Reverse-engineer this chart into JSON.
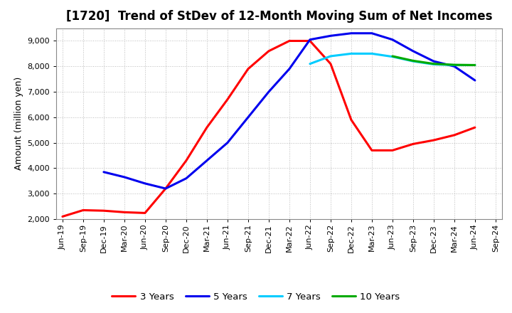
{
  "title": "[1720]  Trend of StDev of 12-Month Moving Sum of Net Incomes",
  "ylabel": "Amount (million yen)",
  "x_labels": [
    "Jun-19",
    "Sep-19",
    "Dec-19",
    "Mar-20",
    "Jun-20",
    "Sep-20",
    "Dec-20",
    "Mar-21",
    "Jun-21",
    "Sep-21",
    "Dec-21",
    "Mar-22",
    "Jun-22",
    "Sep-22",
    "Dec-22",
    "Mar-23",
    "Jun-23",
    "Sep-23",
    "Dec-23",
    "Mar-24",
    "Jun-24",
    "Sep-24"
  ],
  "series_order": [
    "3 Years",
    "5 Years",
    "7 Years",
    "10 Years"
  ],
  "series": {
    "3 Years": {
      "color": "#FF0000",
      "data": [
        2100,
        2350,
        2330,
        2270,
        2240,
        3200,
        4300,
        5600,
        6700,
        7900,
        8600,
        9000,
        9000,
        8100,
        5900,
        4700,
        4700,
        4950,
        5100,
        5300,
        5600,
        null
      ]
    },
    "5 Years": {
      "color": "#0000EE",
      "data": [
        null,
        null,
        3850,
        3650,
        3400,
        3200,
        3600,
        4300,
        5000,
        6000,
        7000,
        7900,
        9050,
        9200,
        9300,
        9300,
        9050,
        8600,
        8200,
        8000,
        7450,
        null
      ]
    },
    "7 Years": {
      "color": "#00CCFF",
      "data": [
        null,
        null,
        null,
        null,
        null,
        null,
        null,
        null,
        null,
        null,
        null,
        null,
        8100,
        8400,
        8500,
        8500,
        8380,
        8200,
        8080,
        8050,
        8050,
        null
      ]
    },
    "10 Years": {
      "color": "#00AA00",
      "data": [
        null,
        null,
        null,
        null,
        null,
        null,
        null,
        null,
        null,
        null,
        null,
        null,
        null,
        null,
        null,
        null,
        8400,
        8220,
        8100,
        8060,
        8050,
        null
      ]
    }
  },
  "ylim": [
    2000,
    9500
  ],
  "yticks": [
    2000,
    3000,
    4000,
    5000,
    6000,
    7000,
    8000,
    9000
  ],
  "background_color": "#FFFFFF",
  "grid_color": "#BBBBBB",
  "title_fontsize": 12,
  "axis_fontsize": 9,
  "tick_fontsize": 8,
  "legend_fontsize": 9.5
}
